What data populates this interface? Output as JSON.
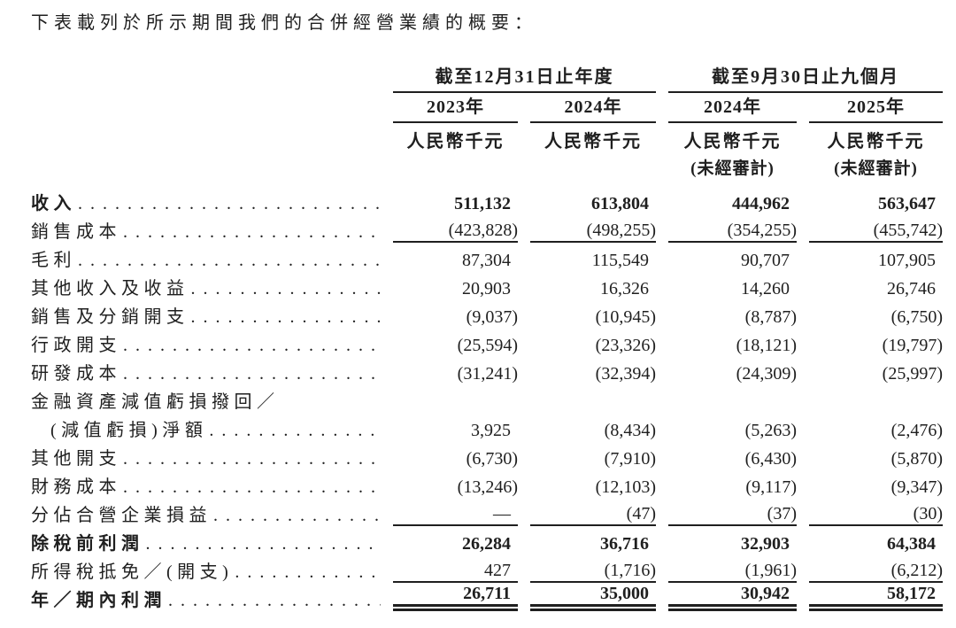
{
  "title": "下表載列於所示期間我們的合併經營業績的概要：",
  "leader": ". . . . . . . . . . . . . . . . . . . . . . . . . . . . . . . . . . . . . . . . . . . . .",
  "table": {
    "groups": [
      {
        "title": "截至12月31日止年度"
      },
      {
        "title": "截至9月30日止九個月"
      }
    ],
    "years": [
      "2023年",
      "2024年",
      "2024年",
      "2025年"
    ],
    "units": [
      "人民幣千元",
      "人民幣千元",
      "人民幣千元",
      "人民幣千元"
    ],
    "notes": [
      "",
      "",
      "(未經審計)",
      "(未經審計)"
    ],
    "rows": [
      {
        "label": "收入",
        "values": [
          "511,132",
          "613,804",
          "444,962",
          "563,647"
        ]
      },
      {
        "label": "銷售成本",
        "values": [
          "(423,828)",
          "(498,255)",
          "(354,255)",
          "(455,742)"
        ]
      },
      {
        "label": "毛利",
        "values": [
          "87,304",
          "115,549",
          "90,707",
          "107,905"
        ]
      },
      {
        "label": "其他收入及收益",
        "values": [
          "20,903",
          "16,326",
          "14,260",
          "26,746"
        ]
      },
      {
        "label": "銷售及分銷開支",
        "values": [
          "(9,037)",
          "(10,945)",
          "(8,787)",
          "(6,750)"
        ]
      },
      {
        "label": "行政開支",
        "values": [
          "(25,594)",
          "(23,326)",
          "(18,121)",
          "(19,797)"
        ]
      },
      {
        "label": "研發成本",
        "values": [
          "(31,241)",
          "(32,394)",
          "(24,309)",
          "(25,997)"
        ]
      },
      {
        "label": "金融資產減值虧損撥回／",
        "values": [
          "",
          "",
          "",
          ""
        ]
      },
      {
        "label": "(減值虧損)淨額",
        "values": [
          "3,925",
          "(8,434)",
          "(5,263)",
          "(2,476)"
        ]
      },
      {
        "label": "其他開支",
        "values": [
          "(6,730)",
          "(7,910)",
          "(6,430)",
          "(5,870)"
        ]
      },
      {
        "label": "財務成本",
        "values": [
          "(13,246)",
          "(12,103)",
          "(9,117)",
          "(9,347)"
        ]
      },
      {
        "label": "分佔合營企業損益",
        "values": [
          "—",
          "(47)",
          "(37)",
          "(30)"
        ]
      },
      {
        "label": "除稅前利潤",
        "values": [
          "26,284",
          "36,716",
          "32,903",
          "64,384"
        ]
      },
      {
        "label": "所得稅抵免／(開支)",
        "values": [
          "427",
          "(1,716)",
          "(1,961)",
          "(6,212)"
        ]
      },
      {
        "label": "年／期內利潤",
        "values": [
          "26,711",
          "35,000",
          "30,942",
          "58,172"
        ]
      }
    ]
  }
}
